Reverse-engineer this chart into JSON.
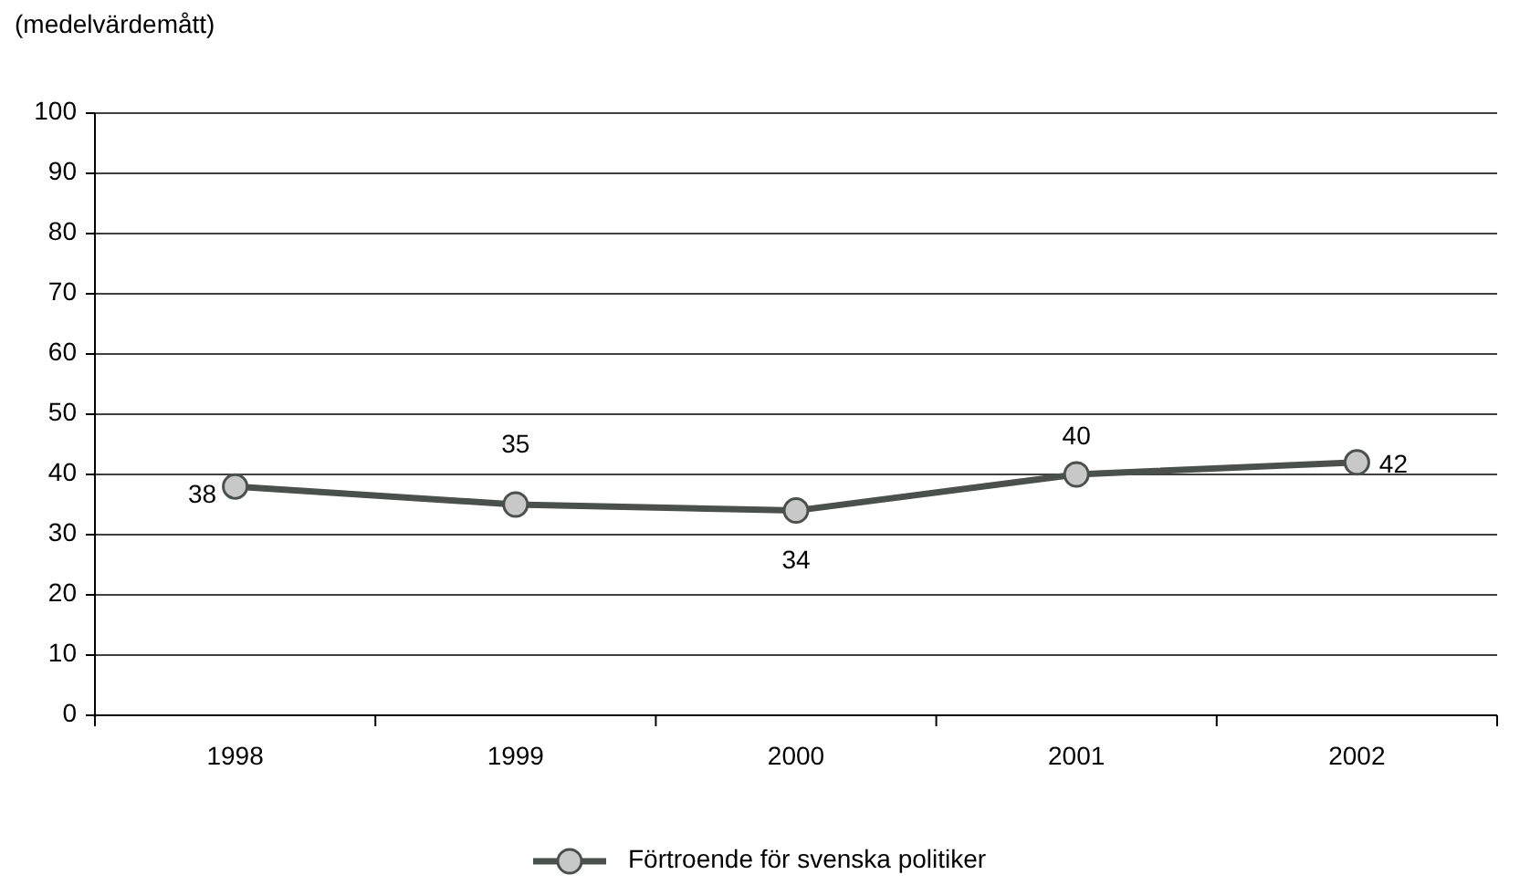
{
  "chart_data": {
    "type": "line",
    "ylabel": "(medelvärdemått)",
    "categories": [
      "1998",
      "1999",
      "2000",
      "2001",
      "2002"
    ],
    "series": [
      {
        "name": "Förtroende för svenska politiker",
        "color": "#4a504c",
        "values": [
          38,
          35,
          34,
          40,
          42
        ]
      }
    ],
    "ylim": [
      0,
      100
    ],
    "yticks": [
      0,
      10,
      20,
      30,
      40,
      50,
      60,
      70,
      80,
      90,
      100
    ],
    "grid": "y",
    "legend": "bottom",
    "marker": "circle",
    "data_labels": true
  }
}
